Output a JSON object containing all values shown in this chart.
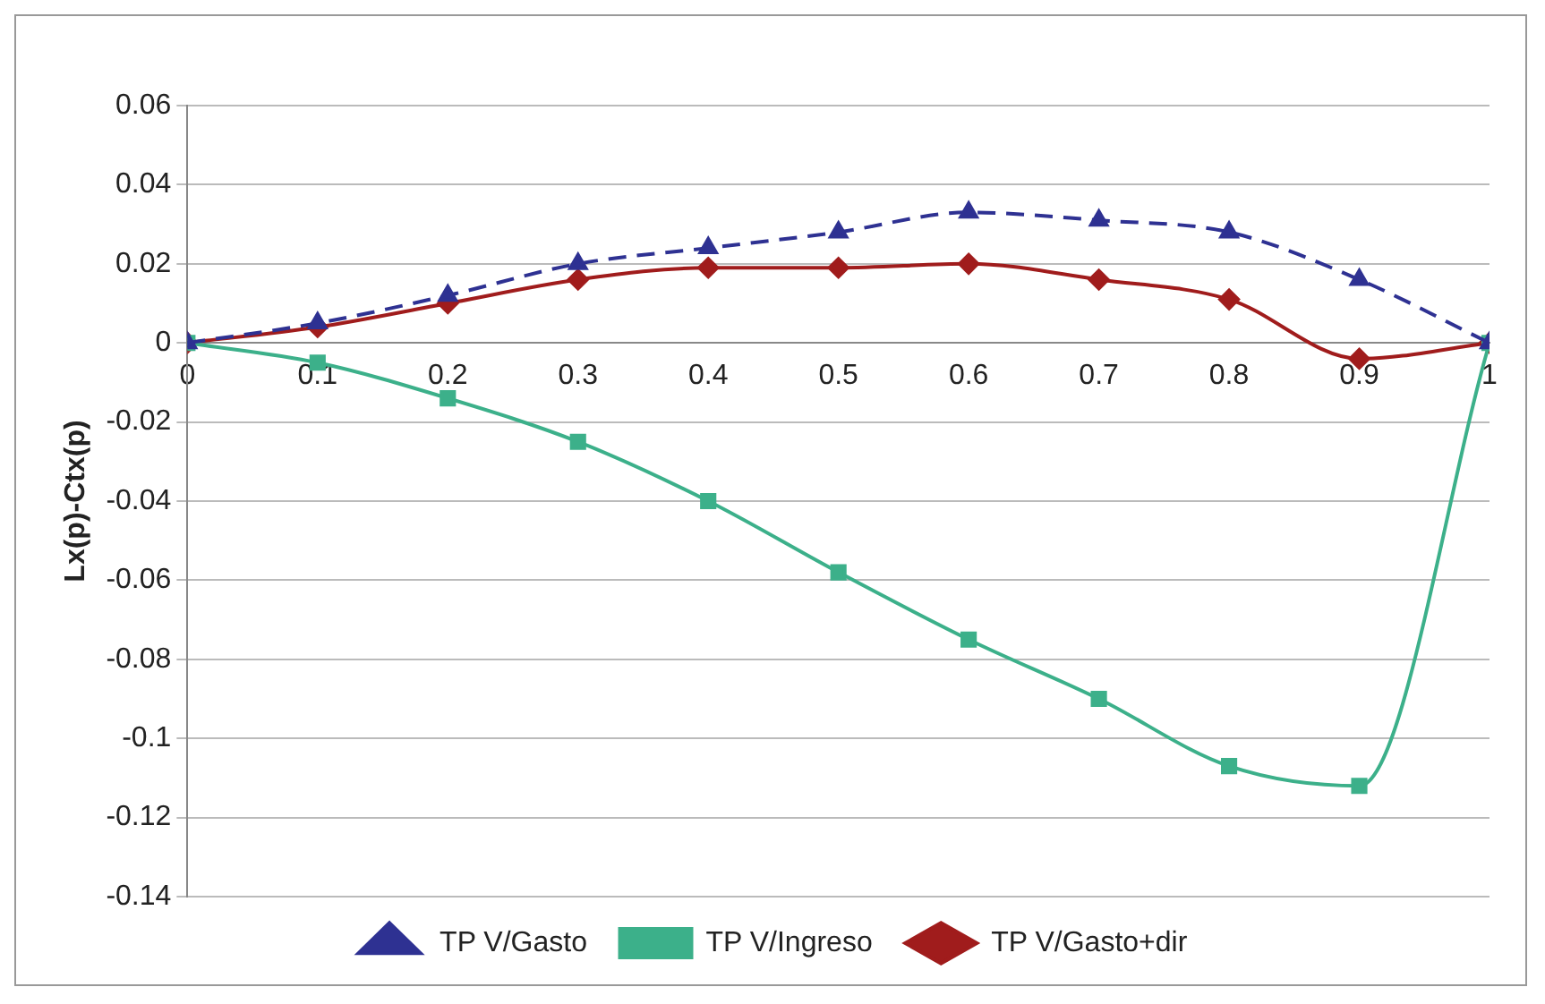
{
  "chart_data": {
    "type": "line",
    "ylabel": "Lx(p)-Ctx(p)",
    "x": [
      0,
      0.1,
      0.2,
      0.3,
      0.4,
      0.5,
      0.6,
      0.7,
      0.8,
      0.9,
      1
    ],
    "xlim": [
      0,
      1
    ],
    "xticks": [
      0,
      0.1,
      0.2,
      0.3,
      0.4,
      0.5,
      0.6,
      0.7,
      0.8,
      0.9,
      1
    ],
    "ylim": [
      -0.14,
      0.06
    ],
    "yticks": [
      -0.14,
      -0.12,
      -0.1,
      -0.08,
      -0.06,
      -0.04,
      -0.02,
      0,
      0.02,
      0.04,
      0.06
    ],
    "grid": "y",
    "legend": "bottom",
    "series": [
      {
        "name": "TP V/Gasto",
        "color": "#2e3192",
        "marker": "triangle",
        "line_style": "dashed",
        "values": [
          0,
          0.005,
          0.012,
          0.02,
          0.024,
          0.028,
          0.033,
          0.031,
          0.028,
          0.016,
          0
        ]
      },
      {
        "name": "TP V/Ingreso",
        "color": "#3cb08a",
        "marker": "square",
        "line_style": "solid",
        "values": [
          0,
          -0.005,
          -0.014,
          -0.025,
          -0.04,
          -0.058,
          -0.075,
          -0.09,
          -0.107,
          -0.112,
          0
        ]
      },
      {
        "name": "TP V/Gasto+dir",
        "color": "#a01c1c",
        "marker": "diamond",
        "line_style": "solid",
        "values": [
          0,
          0.004,
          0.01,
          0.016,
          0.019,
          0.019,
          0.02,
          0.016,
          0.011,
          -0.004,
          0
        ]
      }
    ]
  }
}
